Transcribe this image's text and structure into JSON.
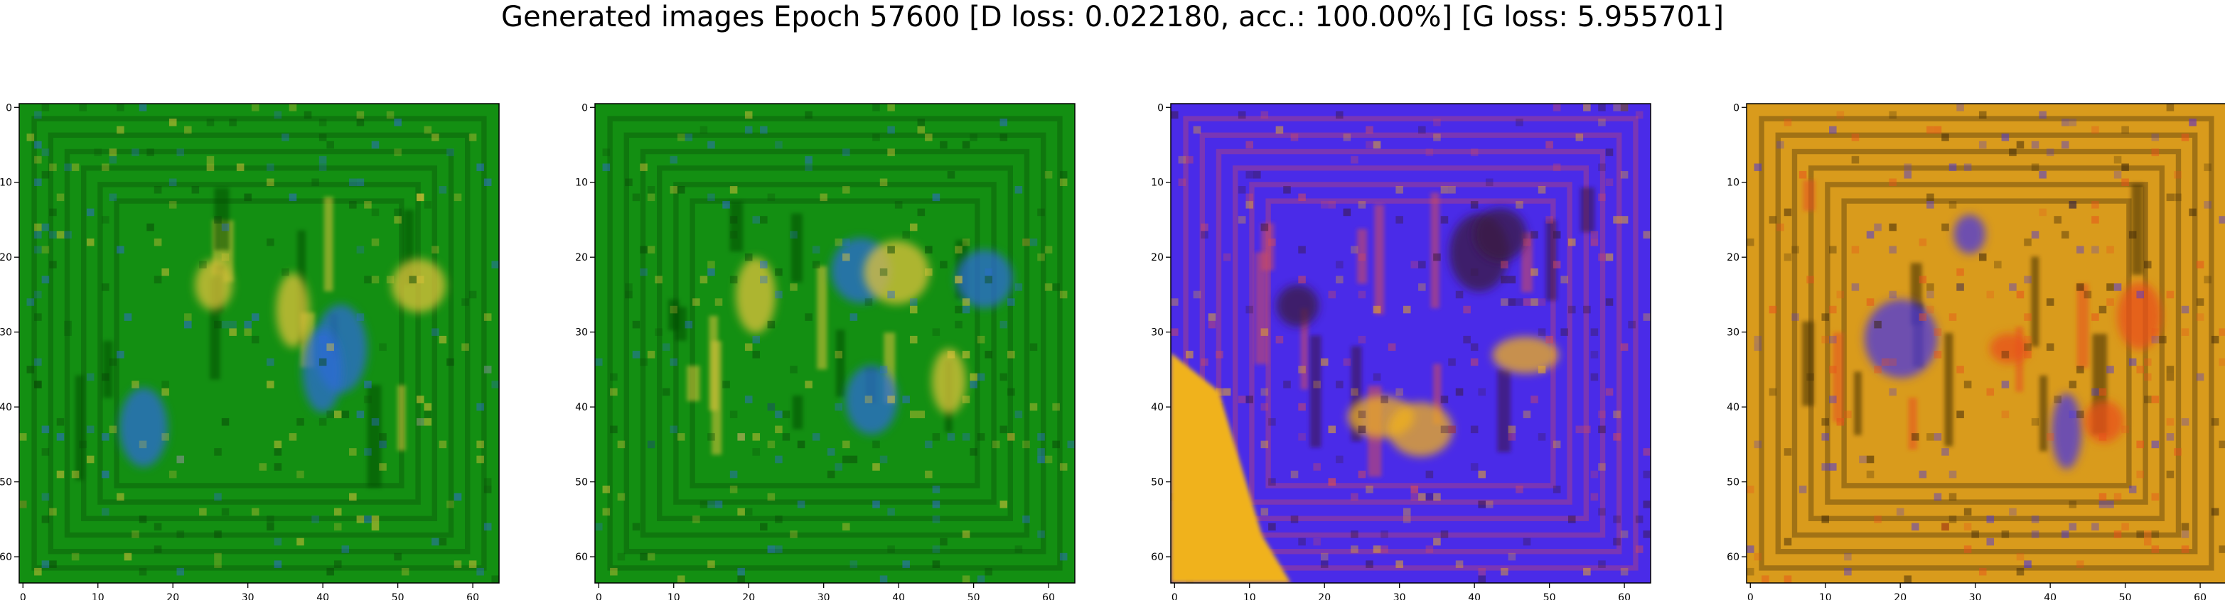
{
  "figure": {
    "title": "Generated images Epoch 57600 [D loss: 0.022180, acc.: 100.00%] [G loss: 5.955701]"
  },
  "chart_data": [
    {
      "type": "heatmap",
      "subplot": 1,
      "dominant_color": "#138f12",
      "accent_colors": [
        "#2f6bd6",
        "#e0c23a",
        "#0a4a08"
      ],
      "xlim": [
        0,
        63
      ],
      "ylim": [
        63,
        0
      ],
      "x_ticks": [
        0,
        10,
        20,
        30,
        40,
        50,
        60
      ],
      "y_ticks": [
        0,
        10,
        20,
        30,
        40,
        50,
        60
      ],
      "grid": false
    },
    {
      "type": "heatmap",
      "subplot": 2,
      "dominant_color": "#138f12",
      "accent_colors": [
        "#2f6bd6",
        "#e0c23a",
        "#0a4a08"
      ],
      "xlim": [
        0,
        63
      ],
      "ylim": [
        63,
        0
      ],
      "x_ticks": [
        0,
        10,
        20,
        30,
        40,
        50,
        60
      ],
      "y_ticks": [
        0,
        10,
        20,
        30,
        40,
        50,
        60
      ],
      "grid": false
    },
    {
      "type": "heatmap",
      "subplot": 3,
      "dominant_color": "#4a2be8",
      "accent_colors": [
        "#f0b21a",
        "#3a1a40",
        "#d24a5a"
      ],
      "xlim": [
        0,
        63
      ],
      "ylim": [
        63,
        0
      ],
      "x_ticks": [
        0,
        10,
        20,
        30,
        40,
        50,
        60
      ],
      "y_ticks": [
        0,
        10,
        20,
        30,
        40,
        50,
        60
      ],
      "grid": false
    },
    {
      "type": "heatmap",
      "subplot": 4,
      "dominant_color": "#d99b1c",
      "accent_colors": [
        "#4a36e0",
        "#e8501c",
        "#3a2508"
      ],
      "xlim": [
        0,
        63
      ],
      "ylim": [
        63,
        0
      ],
      "x_ticks": [
        0,
        10,
        20,
        30,
        40,
        50,
        60
      ],
      "y_ticks": [
        0,
        10,
        20,
        30,
        40,
        50,
        60
      ],
      "grid": false
    }
  ]
}
